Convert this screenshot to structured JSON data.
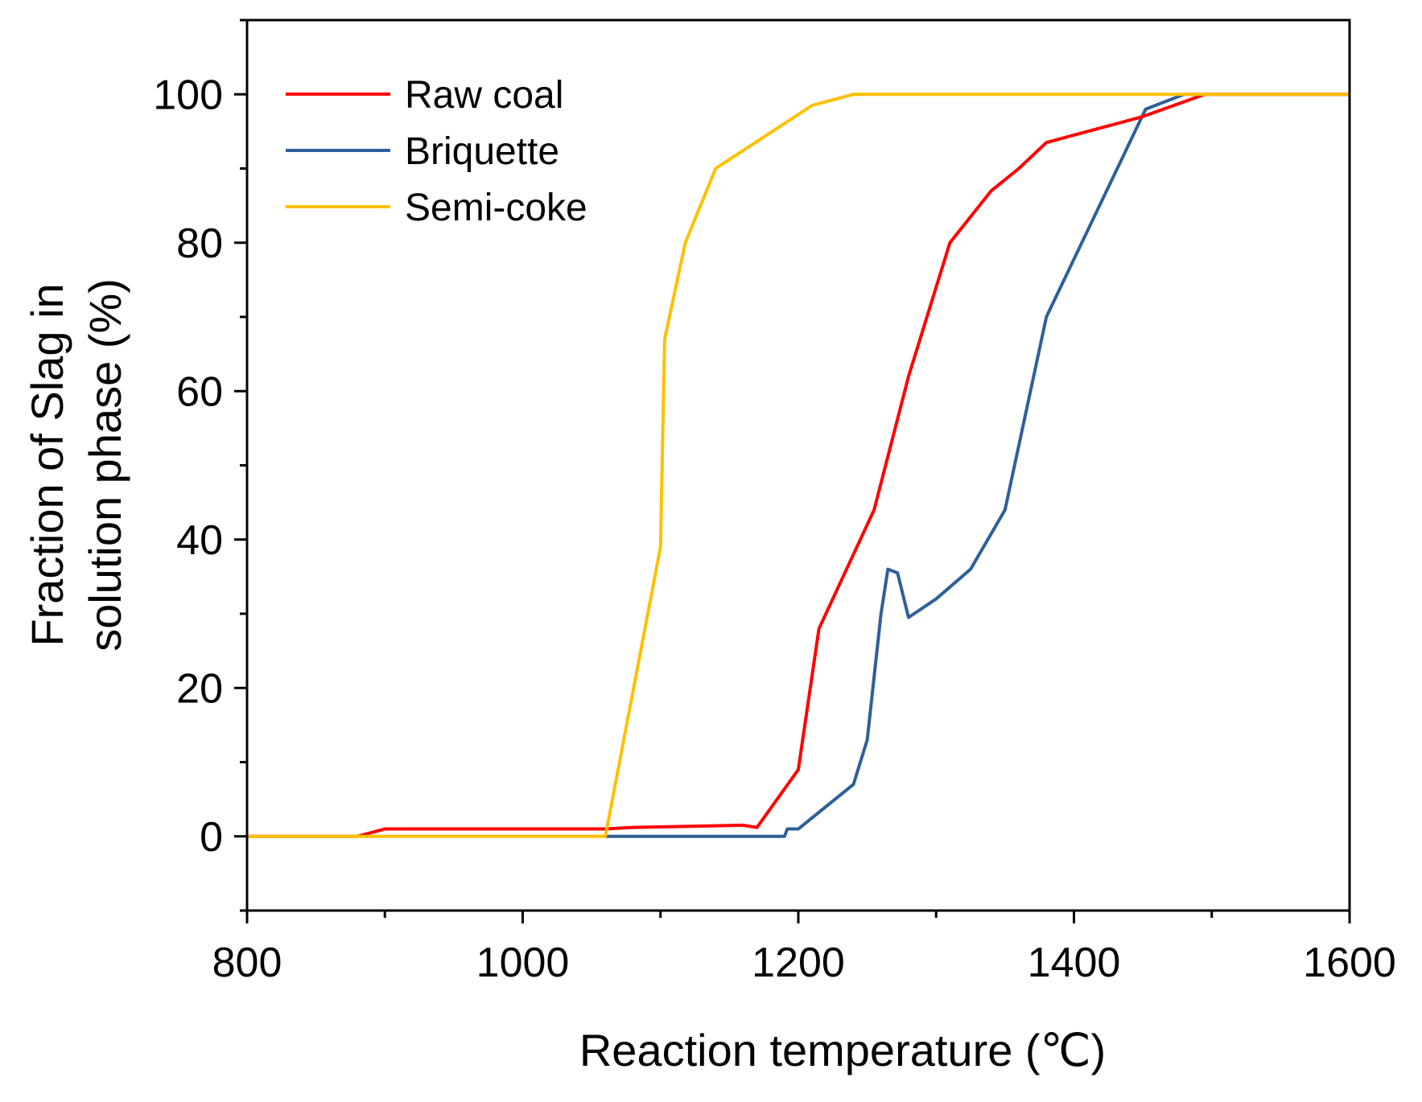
{
  "chart_data": {
    "type": "line",
    "title": "",
    "xlabel": "Reaction temperature (℃)",
    "ylabel_line1": "Fraction of Slag in",
    "ylabel_line2": "solution phase (%)",
    "xlim": [
      800,
      1600
    ],
    "ylim": [
      -10,
      110
    ],
    "xticks": [
      800,
      1000,
      1200,
      1400,
      1600
    ],
    "yticks": [
      0,
      20,
      40,
      60,
      80,
      100
    ],
    "grid": false,
    "legend_position": "top-left",
    "series": [
      {
        "name": "Raw coal",
        "color": "#ff0000",
        "points": [
          [
            800,
            0
          ],
          [
            880,
            0
          ],
          [
            900,
            1
          ],
          [
            1060,
            1
          ],
          [
            1080,
            1.2
          ],
          [
            1160,
            1.5
          ],
          [
            1170,
            1.2
          ],
          [
            1200,
            9
          ],
          [
            1215,
            28
          ],
          [
            1240,
            38
          ],
          [
            1255,
            44
          ],
          [
            1280,
            62
          ],
          [
            1310,
            80
          ],
          [
            1340,
            87
          ],
          [
            1360,
            90
          ],
          [
            1380,
            93.5
          ],
          [
            1400,
            94.5
          ],
          [
            1450,
            97
          ],
          [
            1495,
            100
          ],
          [
            1600,
            100
          ]
        ]
      },
      {
        "name": "Briquette",
        "color": "#2e5f9a",
        "points": [
          [
            1060,
            0
          ],
          [
            1190,
            0
          ],
          [
            1192,
            1
          ],
          [
            1200,
            1
          ],
          [
            1240,
            7
          ],
          [
            1250,
            13
          ],
          [
            1260,
            30
          ],
          [
            1265,
            36
          ],
          [
            1272,
            35.5
          ],
          [
            1280,
            29.5
          ],
          [
            1300,
            32
          ],
          [
            1325,
            36
          ],
          [
            1350,
            44
          ],
          [
            1380,
            70
          ],
          [
            1452,
            98
          ],
          [
            1480,
            100
          ],
          [
            1600,
            100
          ]
        ]
      },
      {
        "name": "Semi-coke",
        "color": "#ffc000",
        "points": [
          [
            800,
            0
          ],
          [
            1060,
            0
          ],
          [
            1100,
            39
          ],
          [
            1103,
            67
          ],
          [
            1118,
            80
          ],
          [
            1140,
            90
          ],
          [
            1210,
            98.5
          ],
          [
            1240,
            100
          ],
          [
            1600,
            100
          ]
        ]
      }
    ]
  }
}
